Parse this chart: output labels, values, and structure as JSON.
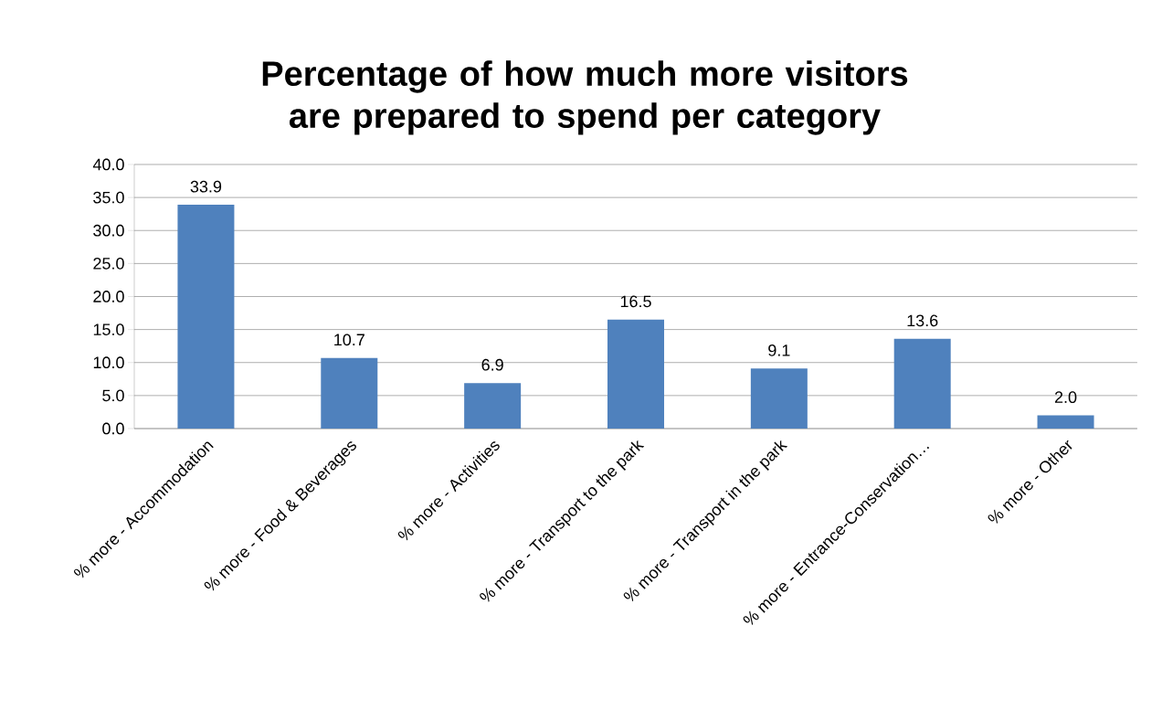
{
  "chart_data": {
    "type": "bar",
    "title": "Percentage of how much more visitors are prepared to spend per category",
    "categories": [
      "% more - Accommodation",
      "% more - Food & Beverages",
      "% more - Activities",
      "% more - Transport to the park",
      "% more - Transport in the park",
      "% more - Entrance-Conservation…",
      "% more - Other"
    ],
    "values": [
      33.9,
      10.7,
      6.9,
      16.5,
      9.1,
      13.6,
      2.0
    ],
    "value_labels": [
      "33.9",
      "10.7",
      "6.9",
      "16.5",
      "9.1",
      "13.6",
      "2.0"
    ],
    "color": "#4f81bd",
    "ylim": [
      0,
      40
    ],
    "yticks": [
      {
        "value": 0,
        "label": "0.0"
      },
      {
        "value": 5,
        "label": "5.0"
      },
      {
        "value": 10,
        "label": "10.0"
      },
      {
        "value": 15,
        "label": "15.0"
      },
      {
        "value": 20,
        "label": "20.0"
      },
      {
        "value": 25,
        "label": "25.0"
      },
      {
        "value": 30,
        "label": "30.0"
      },
      {
        "value": 35,
        "label": "35.0"
      },
      {
        "value": 40,
        "label": "40.0"
      }
    ],
    "grid": "y"
  }
}
